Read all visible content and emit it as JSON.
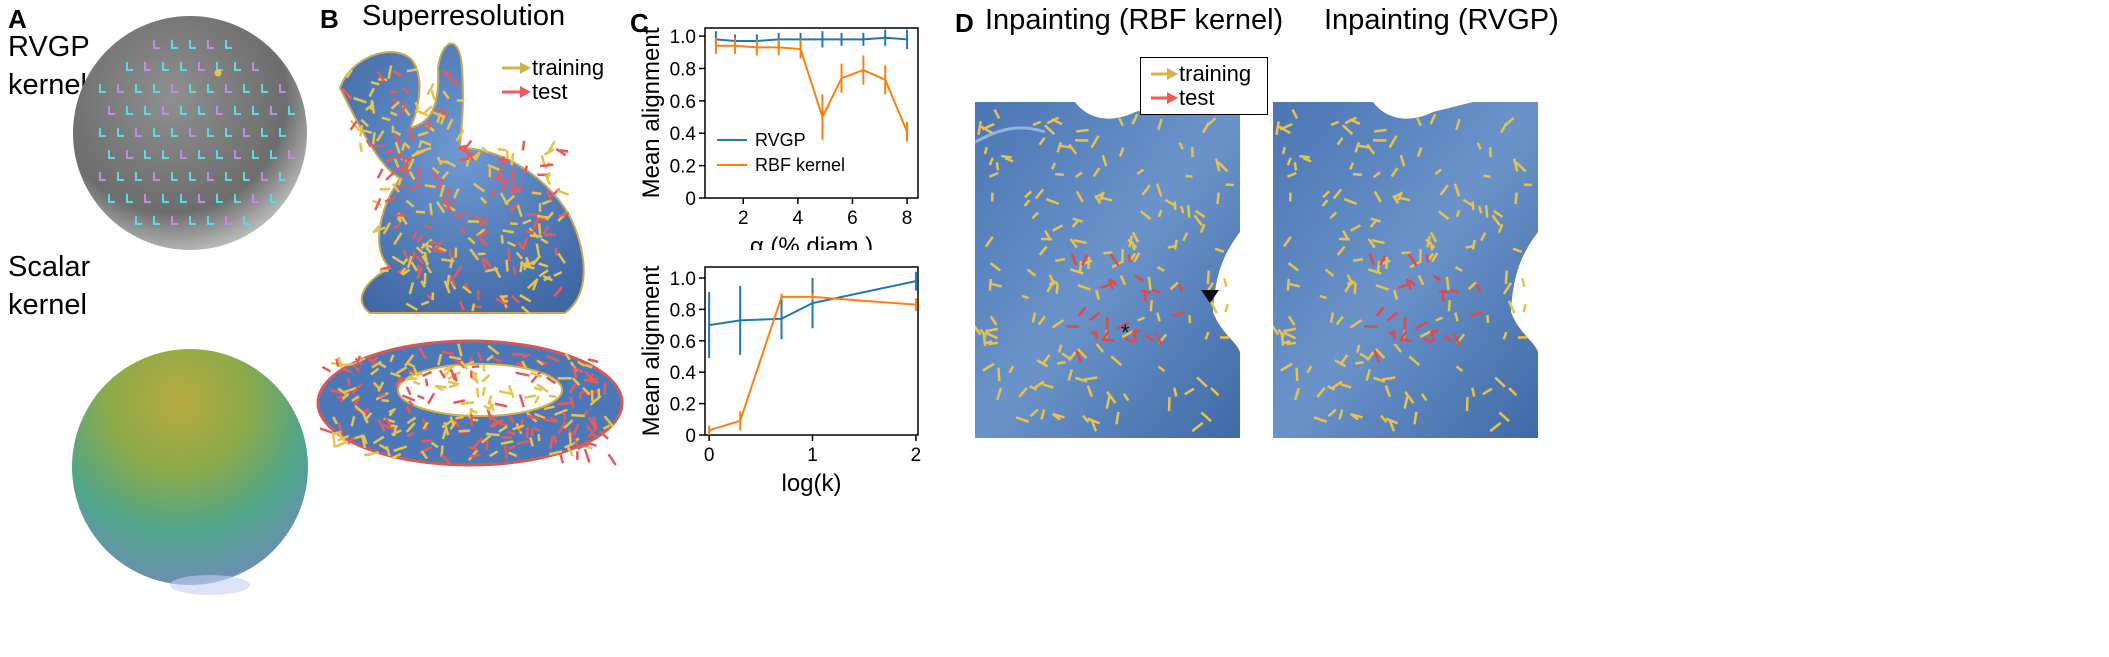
{
  "panels": {
    "A": {
      "letter": "A",
      "rvgp_label_line1": "RVGP",
      "rvgp_label_line2": "kernel",
      "scalar_label_line1": "Scalar",
      "scalar_label_line2": "kernel"
    },
    "B": {
      "letter": "B",
      "title": "Superresolution",
      "legend": {
        "training": "training",
        "test": "test"
      }
    },
    "C": {
      "letter": "C"
    },
    "D": {
      "letter": "D",
      "title_left": "Inpainting (RBF kernel)",
      "title_right": "Inpainting (RVGP)",
      "legend": {
        "training": "training",
        "test": "test"
      },
      "markers": {
        "asterisk": "*"
      }
    }
  },
  "colors": {
    "rvgp": "#1f77b4",
    "rbf": "#ff7f0e",
    "training_arrow": "#d4b24c",
    "test_arrow": "#ef5a5a",
    "surface": "#5b88c4"
  },
  "chart_data": [
    {
      "type": "line",
      "xlabel": "α (% diam.)",
      "ylabel": "Mean alignment",
      "xticks": [
        "2",
        "4",
        "6",
        "8"
      ],
      "yticks": [
        "0",
        "0.2",
        "0.4",
        "0.6",
        "0.8",
        "1.0"
      ],
      "xlim": [
        0.6,
        8.4
      ],
      "ylim": [
        0,
        1.05
      ],
      "legend_position": "lower-left",
      "series": [
        {
          "name": "RVGP",
          "x": [
            1,
            1.7,
            2.5,
            3.3,
            4.1,
            4.9,
            5.6,
            6.4,
            7.2,
            8
          ],
          "y": [
            0.98,
            0.97,
            0.97,
            0.98,
            0.98,
            0.98,
            0.98,
            0.98,
            0.99,
            0.98
          ],
          "err": [
            0.05,
            0.04,
            0.04,
            0.04,
            0.04,
            0.05,
            0.04,
            0.04,
            0.05,
            0.06
          ]
        },
        {
          "name": "RBF kernel",
          "x": [
            1,
            1.7,
            2.5,
            3.3,
            4.1,
            4.9,
            5.6,
            6.4,
            7.2,
            8
          ],
          "y": [
            0.94,
            0.94,
            0.93,
            0.93,
            0.92,
            0.5,
            0.74,
            0.79,
            0.73,
            0.41
          ],
          "err": [
            0.05,
            0.05,
            0.05,
            0.05,
            0.06,
            0.14,
            0.09,
            0.09,
            0.09,
            0.06
          ]
        }
      ]
    },
    {
      "type": "line",
      "xlabel": "log(k)",
      "ylabel": "Mean alignment",
      "xticks": [
        "0",
        "1",
        "2"
      ],
      "yticks": [
        "0",
        "0.2",
        "0.4",
        "0.6",
        "0.8",
        "1.0"
      ],
      "xlim": [
        -0.04,
        2.02
      ],
      "ylim": [
        0,
        1.07
      ],
      "series": [
        {
          "name": "RVGP",
          "x": [
            0,
            0.3,
            0.7,
            1,
            2
          ],
          "y": [
            0.7,
            0.73,
            0.74,
            0.84,
            0.98
          ],
          "err": [
            0.21,
            0.22,
            0.13,
            0.16,
            0.06
          ]
        },
        {
          "name": "RBF kernel",
          "x": [
            0,
            0.3,
            0.7,
            1,
            2
          ],
          "y": [
            0.03,
            0.09,
            0.88,
            0.88,
            0.83
          ],
          "err": [
            0.03,
            0.06,
            0.02,
            0.02,
            0.04
          ]
        }
      ]
    }
  ]
}
